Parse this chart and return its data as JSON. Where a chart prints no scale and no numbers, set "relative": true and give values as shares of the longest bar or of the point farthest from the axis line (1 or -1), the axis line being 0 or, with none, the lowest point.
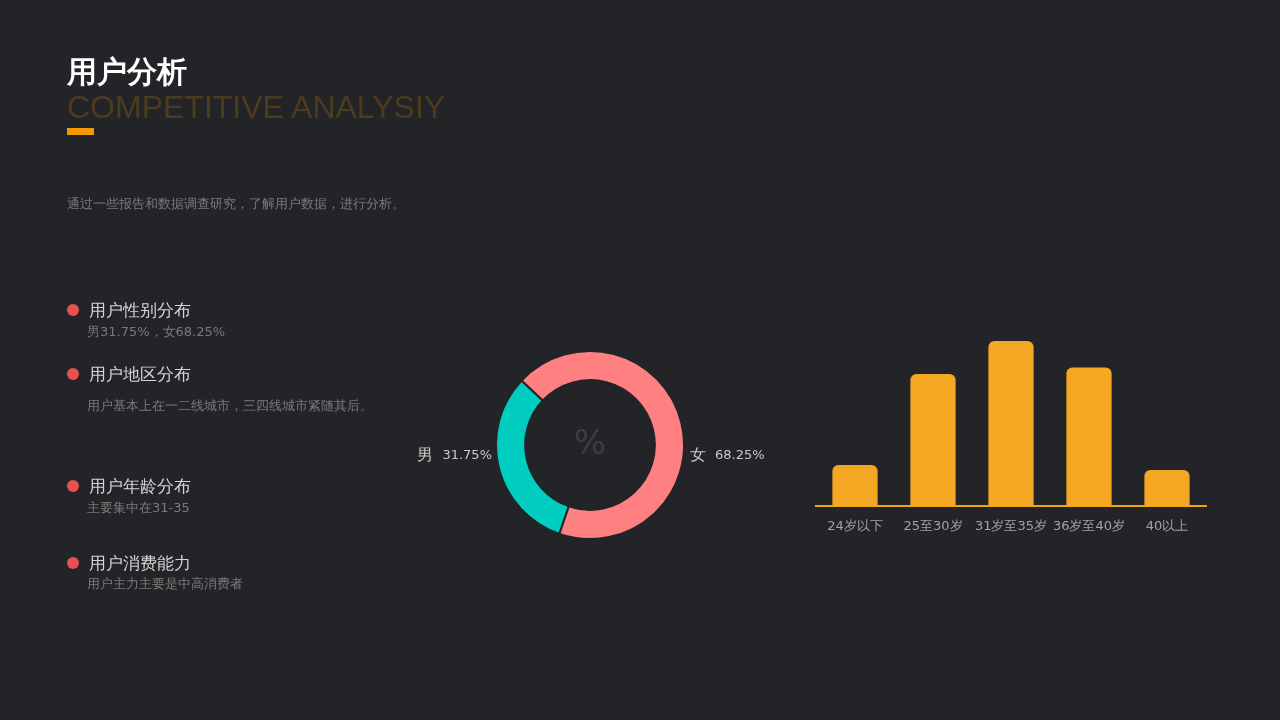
{
  "chart_data": [
    {
      "type": "other",
      "title": "用户分析",
      "subtitle": "COMPETITIVE ANALYSIY",
      "annotations": [
        "通过一些报告和数据调查研究，了解用户数据，进行分析。",
        "用户性别分布",
        "男31.75%，女68.25%",
        "用户地区分布",
        "用户基本上在一二线城市，三四线城市紧随其后。",
        "用户年龄分布",
        "主要集中在31-35",
        "用户消费能力",
        "用户主力主要是中高消费者"
      ]
    },
    {
      "type": "donut",
      "categories": [
        "男",
        "女"
      ],
      "values": [
        31.75,
        68.25
      ],
      "colors": [
        "#00ccc0",
        "#fe8080"
      ],
      "value_labels": [
        "31.75%",
        "68.25%"
      ],
      "annotations": [
        "%"
      ]
    },
    {
      "type": "bar",
      "categories": [
        "24岁以下",
        "25至30岁",
        "31岁至35岁",
        "36岁至40岁",
        "40以上"
      ],
      "values": [
        0.25,
        0.8,
        1,
        0.84,
        0.22
      ],
      "color": "#f5a623",
      "relative": true
    }
  ]
}
